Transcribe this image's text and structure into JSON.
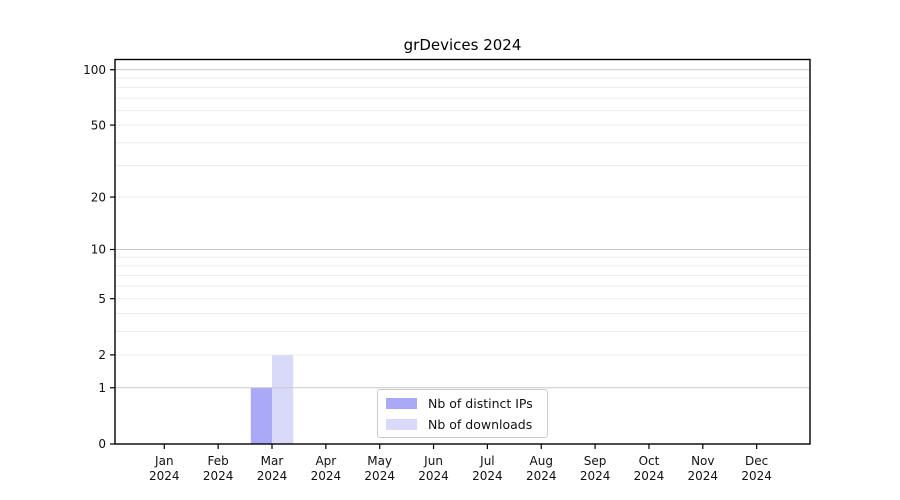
{
  "chart_data": {
    "type": "bar",
    "title": "grDevices 2024",
    "x_categories": [
      "Jan",
      "Feb",
      "Mar",
      "Apr",
      "May",
      "Jun",
      "Jul",
      "Aug",
      "Sep",
      "Oct",
      "Nov",
      "Dec"
    ],
    "x_year": "2024",
    "series": [
      {
        "name": "Nb of distinct IPs",
        "color": "#a9a9f7",
        "values": [
          0,
          0,
          1,
          0,
          0,
          0,
          0,
          0,
          0,
          0,
          0,
          0
        ]
      },
      {
        "name": "Nb of downloads",
        "color": "#d9d9f9",
        "values": [
          0,
          0,
          2,
          0,
          0,
          0,
          0,
          0,
          0,
          0,
          0,
          0
        ]
      }
    ],
    "xlabel": "",
    "ylabel": "",
    "yscale": "log1p",
    "ylim": [
      0,
      113.5
    ],
    "yticks": [
      0,
      1,
      2,
      5,
      10,
      20,
      50,
      100
    ],
    "grid_major": [
      1,
      10,
      100
    ],
    "grid_minor": [
      2,
      3,
      4,
      5,
      6,
      7,
      8,
      9,
      20,
      30,
      40,
      50,
      60,
      70,
      80,
      90
    ],
    "grid": "horizontal-only",
    "legend_position": "inside-bottom-center",
    "colors": {
      "grid_major": "#c9c9c9",
      "grid_minor": "#ededed",
      "axis": "#000000",
      "tick_text": "#111111",
      "background": "#ffffff"
    }
  }
}
